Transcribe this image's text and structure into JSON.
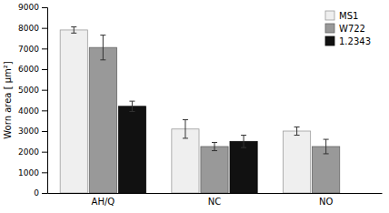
{
  "chart_data": {
    "type": "bar",
    "categories": [
      "AH/Q",
      "NC",
      "NO"
    ],
    "series": [
      {
        "name": "MS1",
        "color": "#efefef",
        "values": [
          7900,
          3100,
          3000
        ],
        "errors": [
          150,
          450,
          200
        ]
      },
      {
        "name": "W722",
        "color": "#999999",
        "values": [
          7050,
          2250,
          2250
        ],
        "errors": [
          600,
          200,
          350
        ]
      },
      {
        "name": "1.2343",
        "color": "#111111",
        "values": [
          4200,
          2500,
          null
        ],
        "errors": [
          250,
          300,
          null
        ]
      }
    ],
    "ylabel": "Worn area [ μm²]",
    "ylim": [
      0,
      9000
    ],
    "yticks": [
      0,
      1000,
      2000,
      3000,
      4000,
      5000,
      6000,
      7000,
      8000,
      9000
    ],
    "legend": "upper right",
    "grid": false
  }
}
